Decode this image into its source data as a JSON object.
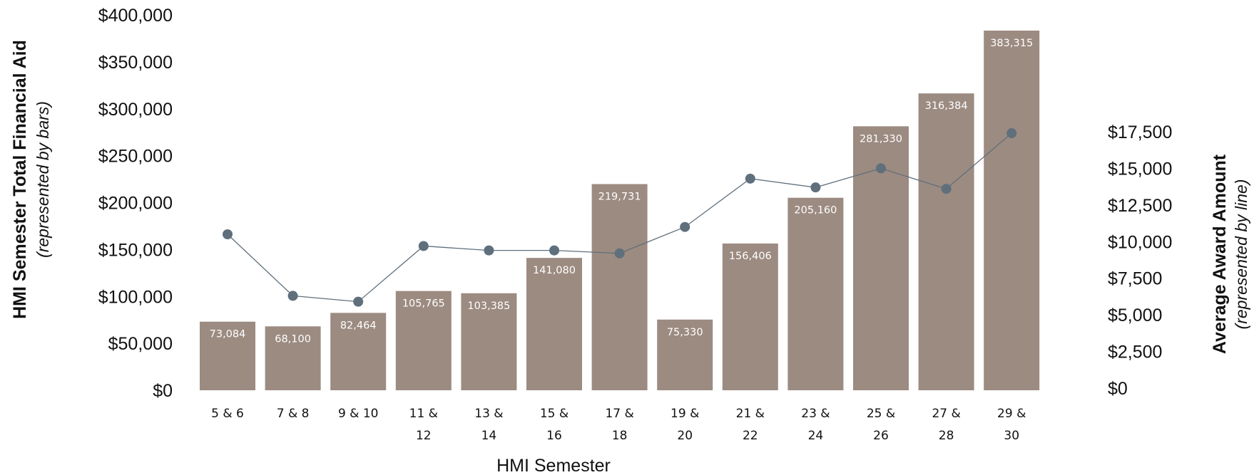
{
  "chart_data": {
    "type": "bar",
    "categories": [
      [
        "5 & 6"
      ],
      [
        "7 & 8"
      ],
      [
        "9 & 10"
      ],
      [
        "11 &",
        "12"
      ],
      [
        "13 &",
        "14"
      ],
      [
        "15 &",
        "16"
      ],
      [
        "17 &",
        "18"
      ],
      [
        "19 &",
        "20"
      ],
      [
        "21 &",
        "22"
      ],
      [
        "23 &",
        "24"
      ],
      [
        "25 &",
        "26"
      ],
      [
        "27 &",
        "28"
      ],
      [
        "29 &",
        "30"
      ]
    ],
    "series": [
      {
        "type": "bar",
        "axis": "left",
        "values": [
          73084,
          68100,
          82464,
          105765,
          103385,
          141080,
          219731,
          75330,
          156406,
          205160,
          281330,
          316384,
          383315
        ],
        "labels": [
          "73,084",
          "68,100",
          "82,464",
          "105,765",
          "103,385",
          "141,080",
          "219,731",
          "75,330",
          "156,406",
          "205,160",
          "281,330",
          "316,384",
          "383,315"
        ],
        "color": "#9c8b81"
      },
      {
        "type": "line",
        "axis": "right",
        "values": [
          10500,
          6300,
          5900,
          9700,
          9400,
          9400,
          9200,
          11000,
          14300,
          13700,
          15000,
          13600,
          17400
        ],
        "color": "#5f6f7c"
      }
    ],
    "xlabel": "HMI Semester",
    "ylabel_left": "HMI Semester Total Financial Aid",
    "ylabel_left_sub": "(represented by bars)",
    "ylabel_right": "Average Award Amount",
    "ylabel_right_sub": "(represented by line)",
    "ylim_left": [
      0,
      400000
    ],
    "ylim_right": [
      0,
      17500
    ],
    "yticks_left": [
      "$0",
      "$50,000",
      "$100,000",
      "$150,000",
      "$200,000",
      "$250,000",
      "$300,000",
      "$350,000",
      "$400,000"
    ],
    "yticks_right": [
      "$0",
      "$2,500",
      "$5,000",
      "$7,500",
      "$10,000",
      "$12,500",
      "$15,000",
      "$17,500"
    ],
    "grid": false,
    "legend": "none"
  }
}
